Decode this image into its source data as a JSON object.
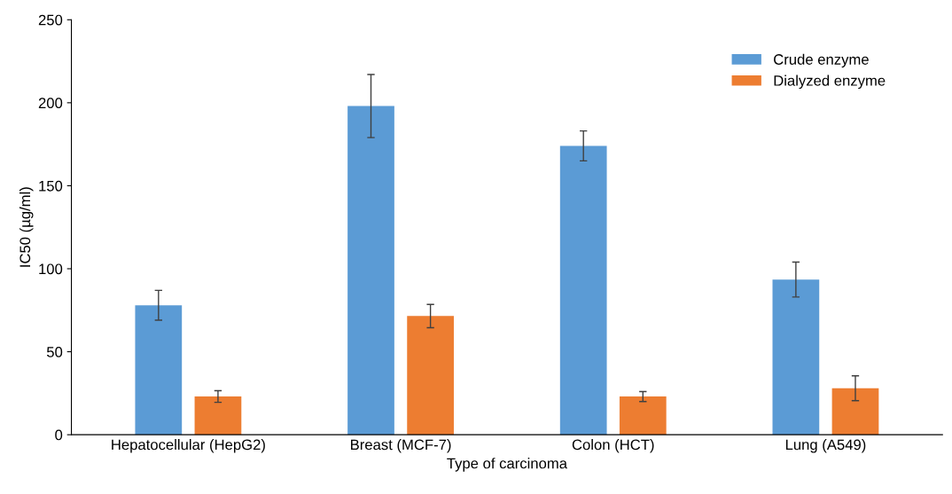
{
  "chart_data": {
    "type": "bar",
    "xlabel": "Type of carcinoma",
    "ylabel": "IC50 (µg/ml)",
    "categories": [
      "Hepatocellular (HepG2)",
      "Breast (MCF-7)",
      "Colon (HCT)",
      "Lung (A549)"
    ],
    "series": [
      {
        "name": "Crude enzyme",
        "color": "#5b9bd5",
        "values": [
          78,
          198,
          174,
          93.5
        ],
        "errors": [
          9,
          19,
          9,
          10.5
        ]
      },
      {
        "name": "Dialyzed enzyme",
        "color": "#ed7d31",
        "values": [
          23,
          71.5,
          23,
          28
        ],
        "errors": [
          3.5,
          7,
          3,
          7.5
        ]
      }
    ],
    "ylim": [
      0,
      250
    ],
    "yticks": [
      0,
      50,
      100,
      150,
      200,
      250
    ],
    "grid": false,
    "legend": "top right"
  }
}
